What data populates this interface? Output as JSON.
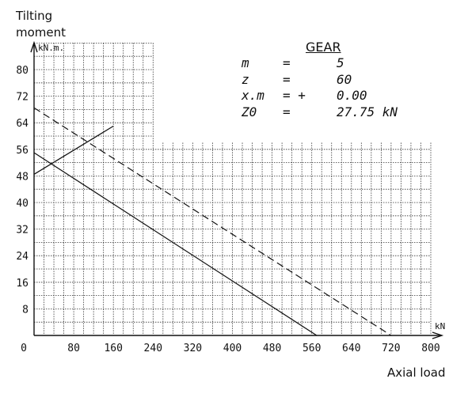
{
  "chart_data": {
    "type": "line",
    "ylabel": "Tilting moment",
    "xlabel": "Axial load",
    "y_unit": "kN.m.",
    "x_unit": "kN",
    "xlim": [
      0,
      800
    ],
    "ylim": [
      0,
      88
    ],
    "x_ticks": [
      "0",
      "80",
      "160",
      "240",
      "320",
      "400",
      "480",
      "560",
      "640",
      "720",
      "800"
    ],
    "y_ticks": [
      "8",
      "16",
      "24",
      "32",
      "40",
      "48",
      "56",
      "64",
      "72",
      "80"
    ],
    "grid": true,
    "series": [
      {
        "style": "solid",
        "x": [
          0,
          570
        ],
        "y": [
          55,
          0
        ]
      },
      {
        "style": "dashed",
        "x": [
          0,
          720
        ],
        "y": [
          68.5,
          0
        ]
      },
      {
        "style": "solid",
        "x": [
          0,
          160
        ],
        "y": [
          48.5,
          63
        ]
      }
    ],
    "annotation": {
      "title": "GEAR",
      "rows": [
        {
          "label": "m",
          "op": "=",
          "value": "5"
        },
        {
          "label": "z",
          "op": "=",
          "value": "60"
        },
        {
          "label": "x.m",
          "op": "= +",
          "value": "0.00"
        },
        {
          "label": "Z0",
          "op": "=",
          "value": "27.75 kN"
        }
      ]
    }
  }
}
